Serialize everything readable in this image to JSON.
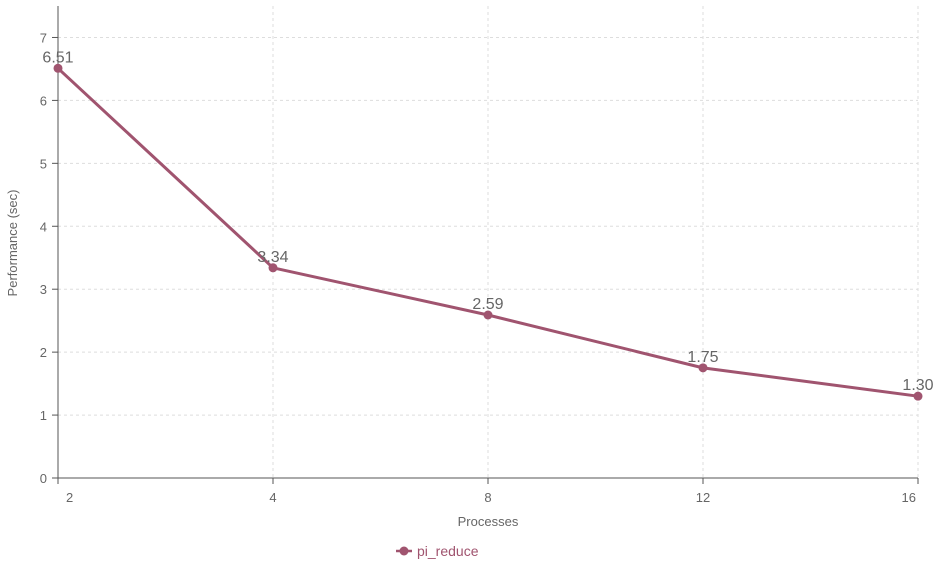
{
  "chart_data": {
    "type": "line",
    "x": [
      2,
      4,
      8,
      12,
      16
    ],
    "x_tick_labels": [
      "2",
      "4",
      "8",
      "12",
      "16"
    ],
    "series": [
      {
        "name": "pi_reduce",
        "values": [
          6.51,
          3.34,
          2.59,
          1.75,
          1.3
        ],
        "data_labels": [
          "6.51",
          "3.34",
          "2.59",
          "1.75",
          "1.30"
        ],
        "color": "#a0546f"
      }
    ],
    "xlabel": "Processes",
    "ylabel": "Performance (sec)",
    "ylim": [
      0,
      7.5
    ],
    "y_ticks": [
      0,
      1,
      2,
      3,
      4,
      5,
      6,
      7
    ],
    "y_tick_labels": [
      "0",
      "1",
      "2",
      "3",
      "4",
      "5",
      "6",
      "7"
    ],
    "grid": true,
    "legend_position": "bottom-center"
  }
}
